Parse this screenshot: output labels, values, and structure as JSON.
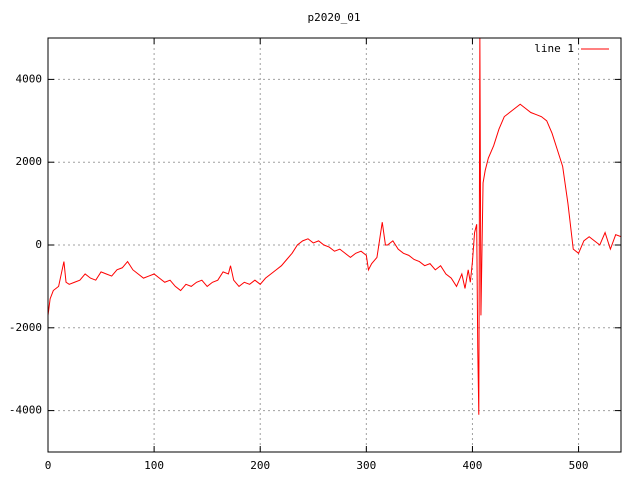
{
  "chart_data": {
    "type": "line",
    "title": "p2020_01",
    "x": [
      0,
      2,
      5,
      10,
      15,
      17,
      20,
      25,
      30,
      35,
      40,
      45,
      50,
      55,
      60,
      65,
      70,
      75,
      80,
      85,
      90,
      95,
      100,
      105,
      110,
      115,
      120,
      125,
      130,
      135,
      140,
      145,
      150,
      155,
      160,
      165,
      170,
      172,
      175,
      180,
      185,
      190,
      195,
      200,
      205,
      210,
      215,
      220,
      225,
      230,
      235,
      240,
      245,
      250,
      255,
      260,
      265,
      270,
      275,
      280,
      285,
      290,
      295,
      300,
      302,
      305,
      310,
      315,
      318,
      320,
      325,
      330,
      335,
      340,
      345,
      350,
      355,
      360,
      365,
      370,
      375,
      380,
      385,
      390,
      393,
      396,
      398,
      400,
      402,
      404,
      405,
      406,
      407,
      408,
      410,
      412,
      415,
      420,
      425,
      430,
      435,
      440,
      445,
      450,
      455,
      460,
      465,
      470,
      475,
      480,
      485,
      490,
      495,
      500,
      505,
      510,
      515,
      520,
      525,
      530,
      535,
      540
    ],
    "series": [
      {
        "name": "line 1",
        "color": "#ff0000",
        "values": [
          -1700,
          -1300,
          -1100,
          -1000,
          -400,
          -900,
          -950,
          -900,
          -850,
          -700,
          -800,
          -850,
          -650,
          -700,
          -750,
          -600,
          -550,
          -400,
          -600,
          -700,
          -800,
          -750,
          -700,
          -800,
          -900,
          -850,
          -1000,
          -1100,
          -950,
          -1000,
          -900,
          -850,
          -1000,
          -900,
          -850,
          -650,
          -700,
          -500,
          -850,
          -1000,
          -900,
          -950,
          -850,
          -950,
          -800,
          -700,
          -600,
          -500,
          -350,
          -200,
          0,
          100,
          150,
          50,
          100,
          0,
          -50,
          -150,
          -100,
          -200,
          -300,
          -200,
          -150,
          -250,
          -600,
          -450,
          -300,
          550,
          0,
          0,
          100,
          -100,
          -200,
          -250,
          -350,
          -400,
          -500,
          -450,
          -600,
          -500,
          -700,
          -800,
          -1000,
          -700,
          -1050,
          -600,
          -900,
          -400,
          300,
          500,
          -2500,
          -4100,
          5000,
          -1700,
          1500,
          1800,
          2100,
          2400,
          2800,
          3100,
          3200,
          3300,
          3400,
          3300,
          3200,
          3150,
          3100,
          3000,
          2700,
          2300,
          1900,
          1000,
          -100,
          -200,
          100,
          200,
          100,
          0,
          300,
          -100,
          250,
          200
        ]
      }
    ],
    "xlim": [
      0,
      540
    ],
    "ylim": [
      -5000,
      5000
    ],
    "xticks": [
      0,
      100,
      200,
      300,
      400,
      500
    ],
    "yticks": [
      -4000,
      -2000,
      0,
      2000,
      4000
    ],
    "grid": true,
    "legend": "top-right"
  }
}
